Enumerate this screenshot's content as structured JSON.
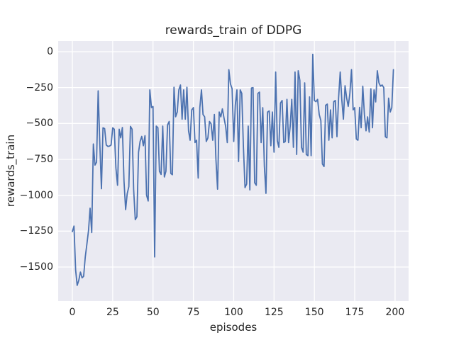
{
  "figure": {
    "background": "#ffffff"
  },
  "chart_data": {
    "type": "line",
    "title": "rewards_train of DDPG",
    "xlabel": "episodes",
    "ylabel": "rewards_train",
    "grid": true,
    "legend": "none",
    "xlim": [
      -8.8,
      208.4
    ],
    "ylim": [
      -1737,
      74
    ],
    "x_ticks": {
      "values": [
        0,
        25,
        50,
        75,
        100,
        125,
        150,
        175,
        200
      ],
      "labels": [
        "0",
        "25",
        "50",
        "75",
        "100",
        "125",
        "150",
        "175",
        "200"
      ]
    },
    "y_ticks": {
      "values": [
        0,
        -250,
        -500,
        -750,
        -1000,
        -1250,
        -1500
      ],
      "labels": [
        "0",
        "−250",
        "−500",
        "−750",
        "−1000",
        "−1250",
        "−1500"
      ]
    },
    "style": {
      "plot_bg": "#eaeaf2",
      "grid_color": "#ffffff",
      "line_color": "#4c72b0",
      "text_color": "#262626",
      "line_width": 1.8,
      "grid_width": 1.3
    },
    "series": [
      {
        "name": "rewards_train",
        "x_start": 0,
        "x_step": 1,
        "values": [
          -1253,
          -1215,
          -1520,
          -1628,
          -1592,
          -1535,
          -1575,
          -1565,
          -1430,
          -1340,
          -1245,
          -1090,
          -1260,
          -643,
          -790,
          -770,
          -273,
          -640,
          -955,
          -530,
          -536,
          -650,
          -660,
          -658,
          -650,
          -530,
          -540,
          -810,
          -930,
          -540,
          -600,
          -528,
          -900,
          -1100,
          -990,
          -940,
          -520,
          -540,
          -960,
          -1170,
          -1150,
          -700,
          -625,
          -590,
          -655,
          -585,
          -1000,
          -1040,
          -266,
          -389,
          -382,
          -1430,
          -518,
          -530,
          -833,
          -855,
          -518,
          -873,
          -833,
          -510,
          -486,
          -848,
          -857,
          -247,
          -453,
          -420,
          -266,
          -232,
          -470,
          -266,
          -470,
          -247,
          -551,
          -617,
          -405,
          -390,
          -633,
          -617,
          -880,
          -390,
          -266,
          -437,
          -454,
          -625,
          -600,
          -486,
          -503,
          -617,
          -437,
          -750,
          -958,
          -420,
          -454,
          -398,
          -462,
          -520,
          -633,
          -125,
          -225,
          -258,
          -625,
          -372,
          -266,
          -765,
          -266,
          -290,
          -658,
          -947,
          -922,
          -518,
          -963,
          -253,
          -250,
          -913,
          -930,
          -290,
          -282,
          -633,
          -390,
          -800,
          -987,
          -420,
          -413,
          -655,
          -420,
          -700,
          -141,
          -620,
          -666,
          -358,
          -340,
          -633,
          -625,
          -332,
          -633,
          -518,
          -332,
          -666,
          -141,
          -716,
          -133,
          -200,
          -666,
          -700,
          -217,
          -716,
          -724,
          -315,
          -724,
          -18,
          -340,
          -348,
          -332,
          -437,
          -480,
          -782,
          -800,
          -373,
          -365,
          -617,
          -405,
          -600,
          -348,
          -340,
          -592,
          -323,
          -141,
          -332,
          -470,
          -237,
          -323,
          -381,
          -290,
          -125,
          -405,
          -390,
          -608,
          -617,
          -388,
          -530,
          -240,
          -437,
          -551,
          -454,
          -560,
          -258,
          -530,
          -266,
          -350,
          -133,
          -217,
          -240,
          -232,
          -250,
          -592,
          -600,
          -323,
          -420,
          -390,
          -125
        ]
      }
    ]
  }
}
